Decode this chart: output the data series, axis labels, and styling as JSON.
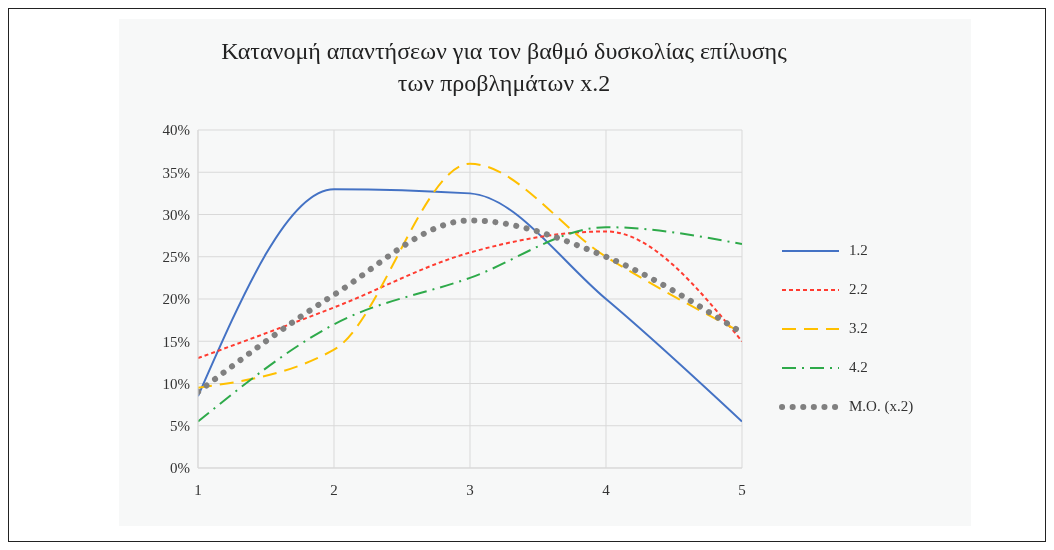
{
  "chart_data": {
    "type": "line",
    "title": "Κατανομή απαντήσεων για τον βαθμό δυσκολίας επίλυσης των προβλημάτων x.2",
    "x": [
      1,
      2,
      3,
      4,
      5
    ],
    "xlim": [
      1,
      5
    ],
    "xticks": [
      1,
      2,
      3,
      4,
      5
    ],
    "ylim": [
      0,
      40
    ],
    "yticks": [
      {
        "value": 0,
        "label": "0%"
      },
      {
        "value": 5,
        "label": "5%"
      },
      {
        "value": 10,
        "label": "10%"
      },
      {
        "value": 15,
        "label": "15%"
      },
      {
        "value": 20,
        "label": "20%"
      },
      {
        "value": 25,
        "label": "25%"
      },
      {
        "value": 30,
        "label": "30%"
      },
      {
        "value": 35,
        "label": "35%"
      },
      {
        "value": 40,
        "label": "40%"
      }
    ],
    "grid": true,
    "legend": "right",
    "marker": "none",
    "series": [
      {
        "name": "1.2",
        "color": "#4472c4",
        "line_style": "solid",
        "values": [
          8.5,
          33,
          32.5,
          20,
          5.5
        ]
      },
      {
        "name": "2.2",
        "color": "#ff3b30",
        "line_style": "dashed",
        "values": [
          13,
          19,
          25.5,
          28,
          15
        ]
      },
      {
        "name": "3.2",
        "color": "#ffc000",
        "line_style": "longdash",
        "values": [
          9.5,
          14,
          36,
          25,
          16
        ]
      },
      {
        "name": "4.2",
        "color": "#2eaa4a",
        "line_style": "dashdot",
        "values": [
          5.5,
          17,
          22.5,
          28.5,
          26.5
        ]
      },
      {
        "name": "M.O. (x.2)",
        "color": "#808080",
        "line_style": "dotted",
        "values": [
          9,
          20.5,
          29.3,
          25,
          16
        ]
      }
    ]
  }
}
